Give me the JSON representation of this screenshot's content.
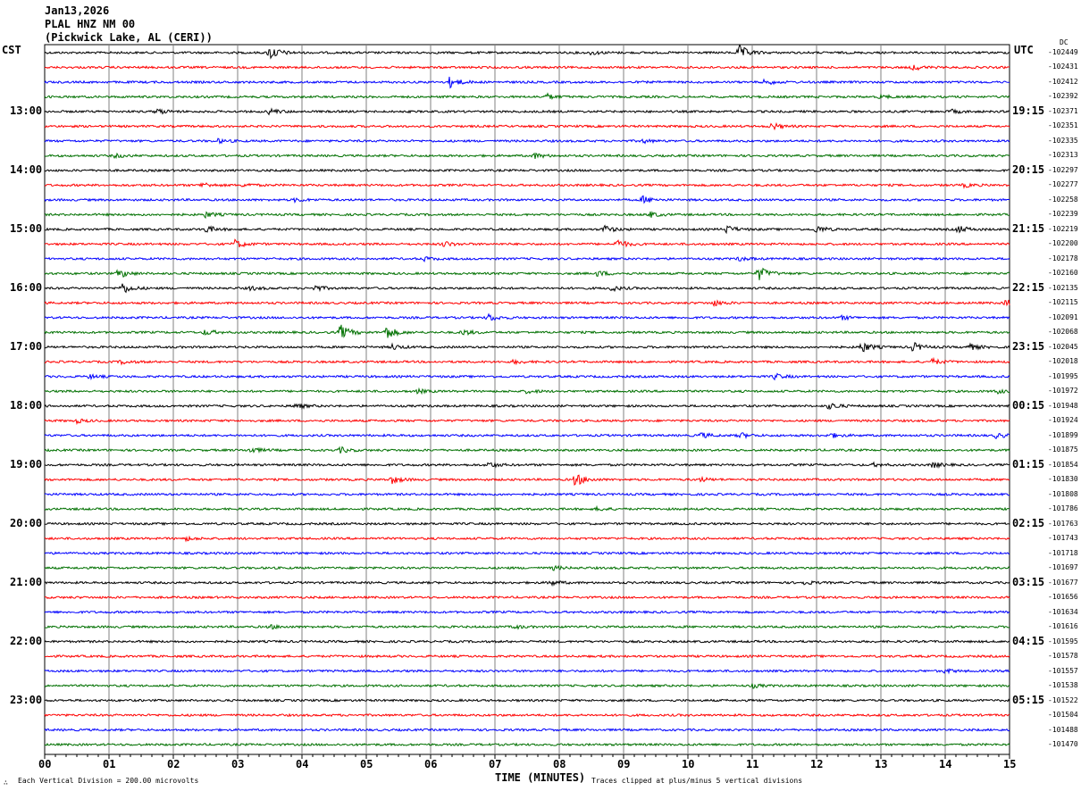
{
  "header": {
    "date": "Jan13,2026",
    "station": "PLAL HNZ NM 00",
    "location": "(Pickwick Lake, AL (CERI))"
  },
  "left_timezone": "CST",
  "right_timezone": "UTC",
  "dc_label": "DC",
  "footer": {
    "scale_note": "Each Vertical Division =  200.00 microvolts",
    "xlabel": "TIME (MINUTES)",
    "clip_note": "Traces clipped at plus/minus 5 vertical divisions"
  },
  "chart_data": {
    "type": "line",
    "title": "Jan13,2026 PLAL HNZ NM 00 (Pickwick Lake, AL (CERI))",
    "xlabel": "TIME (MINUTES)",
    "xlim": [
      0,
      15
    ],
    "x_ticks": [
      "00",
      "01",
      "02",
      "03",
      "04",
      "05",
      "06",
      "07",
      "08",
      "09",
      "10",
      "11",
      "12",
      "13",
      "14",
      "15"
    ],
    "grid": true,
    "trace_colors": [
      "#000000",
      "#ff0000",
      "#0000ff",
      "#007000"
    ],
    "left_hour_labels": [
      "13:00",
      "14:00",
      "15:00",
      "16:00",
      "17:00",
      "18:00",
      "19:00",
      "20:00",
      "21:00",
      "22:00",
      "23:00"
    ],
    "right_hour_labels": [
      "19:15",
      "20:15",
      "21:15",
      "22:15",
      "23:15",
      "00:15",
      "01:15",
      "02:15",
      "03:15",
      "04:15",
      "05:15"
    ],
    "dc_offsets": [
      "-102449",
      "-102431",
      "-102412",
      "-102392",
      "-102371",
      "-102351",
      "-102335",
      "-102313",
      "-102297",
      "-102277",
      "-102258",
      "-102239",
      "-102219",
      "-102200",
      "-102178",
      "-102160",
      "-102135",
      "-102115",
      "-102091",
      "-102068",
      "-102045",
      "-102018",
      "-101995",
      "-101972",
      "-101948",
      "-101924",
      "-101899",
      "-101875",
      "-101854",
      "-101830",
      "-101808",
      "-101786",
      "-101763",
      "-101743",
      "-101718",
      "-101697",
      "-101677",
      "-101656",
      "-101634",
      "-101616",
      "-101595",
      "-101578",
      "-101557",
      "-101538",
      "-101522",
      "-101504",
      "-101488",
      "-101470"
    ],
    "events": [
      [
        0,
        3.5,
        8
      ],
      [
        0,
        10.8,
        8
      ],
      [
        0,
        8.5,
        2
      ],
      [
        1,
        13.5,
        3
      ],
      [
        2,
        6.3,
        6
      ],
      [
        2,
        11.2,
        3
      ],
      [
        3,
        7.8,
        3
      ],
      [
        3,
        13,
        2
      ],
      [
        4,
        1.75,
        3
      ],
      [
        4,
        3.5,
        3
      ],
      [
        4,
        14.1,
        2
      ],
      [
        5,
        11.3,
        4
      ],
      [
        6,
        2.7,
        2
      ],
      [
        6,
        9.3,
        2
      ],
      [
        7,
        1.1,
        2
      ],
      [
        7,
        7.6,
        3
      ],
      [
        9,
        2.45,
        3
      ],
      [
        9,
        3.1,
        2
      ],
      [
        9,
        14.3,
        2
      ],
      [
        10,
        3.9,
        2
      ],
      [
        10,
        9.3,
        4
      ],
      [
        11,
        2.5,
        3
      ],
      [
        11,
        9.4,
        3
      ],
      [
        12,
        2.5,
        4
      ],
      [
        12,
        8.7,
        4
      ],
      [
        12,
        10.6,
        4
      ],
      [
        12,
        12,
        4
      ],
      [
        12,
        14.2,
        4
      ],
      [
        13,
        2.95,
        5
      ],
      [
        13,
        6.2,
        3
      ],
      [
        13,
        8.9,
        5
      ],
      [
        14,
        5.9,
        2
      ],
      [
        14,
        10.8,
        2
      ],
      [
        15,
        1.15,
        5
      ],
      [
        15,
        8.6,
        3
      ],
      [
        15,
        11.1,
        8
      ],
      [
        16,
        1.2,
        6
      ],
      [
        16,
        3.2,
        2
      ],
      [
        16,
        4.2,
        3
      ],
      [
        16,
        8.8,
        3
      ],
      [
        17,
        10.4,
        3
      ],
      [
        17,
        14.95,
        3
      ],
      [
        18,
        6.9,
        4
      ],
      [
        18,
        12.4,
        2
      ],
      [
        19,
        4.6,
        8
      ],
      [
        19,
        5.3,
        8
      ],
      [
        19,
        6.5,
        3
      ],
      [
        19,
        2.5,
        3
      ],
      [
        20,
        12.7,
        6
      ],
      [
        20,
        13.5,
        5
      ],
      [
        20,
        14.35,
        4
      ],
      [
        20,
        5.4,
        3
      ],
      [
        21,
        7.3,
        2
      ],
      [
        21,
        13.8,
        3
      ],
      [
        21,
        1.2,
        2
      ],
      [
        22,
        11.35,
        3
      ],
      [
        22,
        0.7,
        2
      ],
      [
        23,
        5.8,
        2
      ],
      [
        23,
        7.5,
        2
      ],
      [
        23,
        14.8,
        2
      ],
      [
        24,
        3.9,
        3
      ],
      [
        24,
        12.2,
        4
      ],
      [
        25,
        0.5,
        2
      ],
      [
        26,
        10.2,
        3
      ],
      [
        26,
        10.8,
        3
      ],
      [
        26,
        12.2,
        3
      ],
      [
        26,
        14.8,
        3
      ],
      [
        27,
        3.2,
        3
      ],
      [
        27,
        4.6,
        3
      ],
      [
        28,
        6.9,
        3
      ],
      [
        28,
        12.9,
        2
      ],
      [
        28,
        13.8,
        3
      ],
      [
        29,
        5.4,
        4
      ],
      [
        29,
        8.25,
        7
      ],
      [
        29,
        10.2,
        2
      ],
      [
        31,
        8.6,
        2
      ],
      [
        33,
        2.2,
        2
      ],
      [
        35,
        7.9,
        2
      ],
      [
        36,
        7.85,
        3
      ],
      [
        36,
        11.8,
        2
      ],
      [
        39,
        3.5,
        2
      ],
      [
        39,
        7.3,
        2
      ],
      [
        42,
        14.0,
        2
      ],
      [
        43,
        11,
        2
      ]
    ]
  }
}
